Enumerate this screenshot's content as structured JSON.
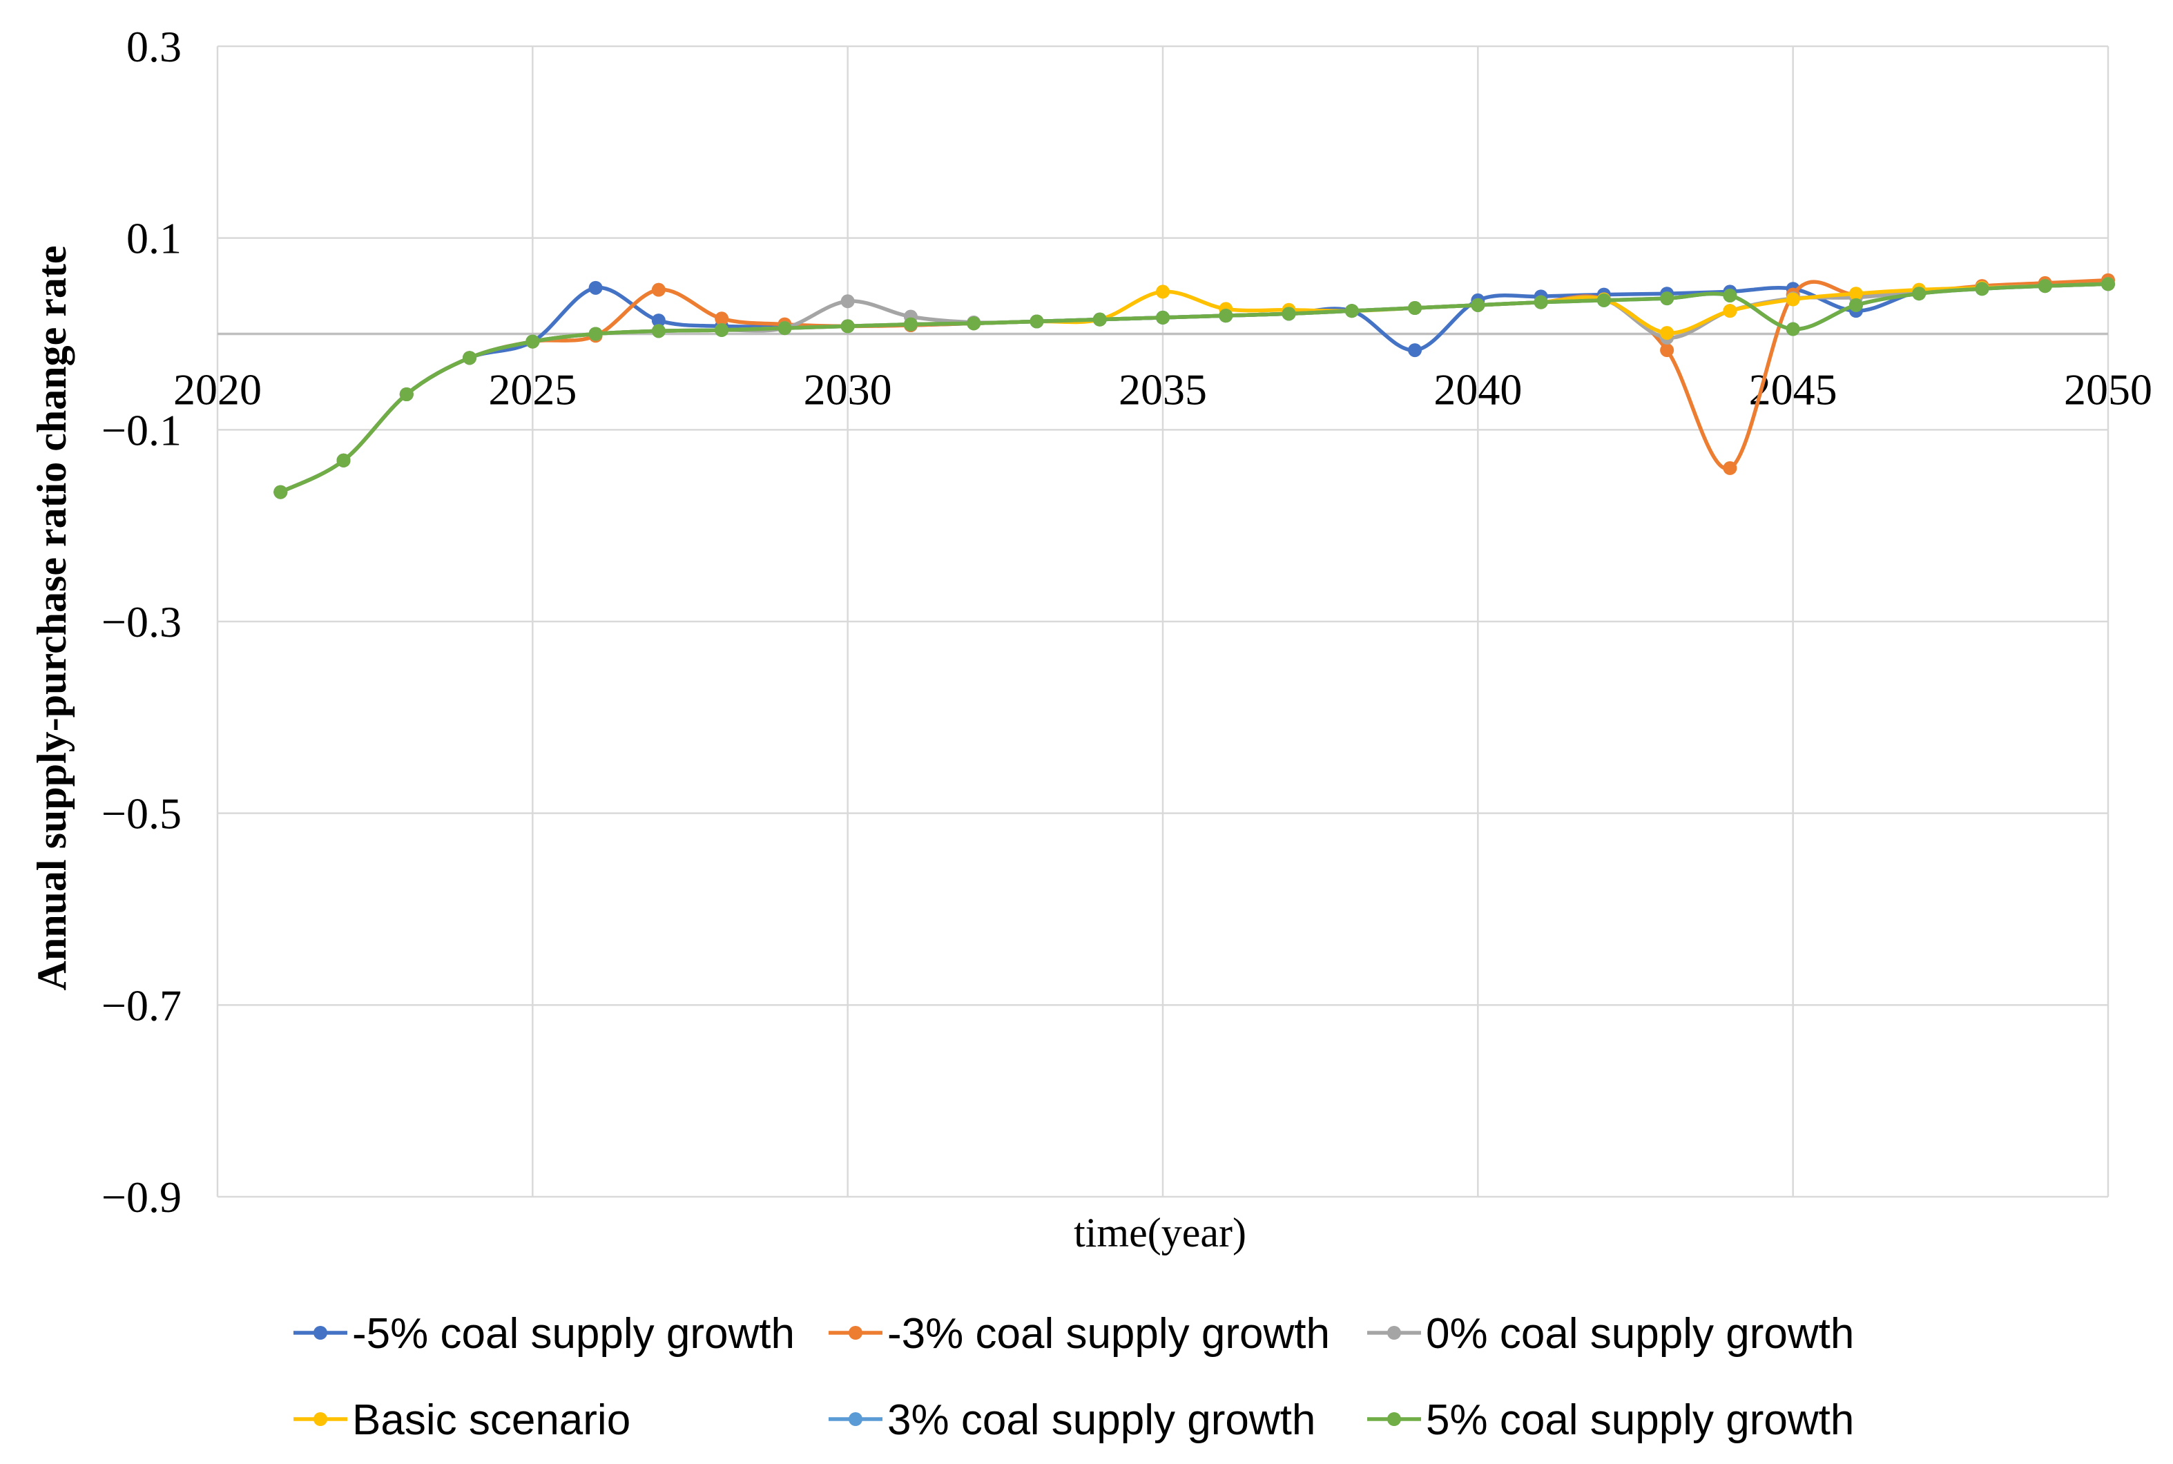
{
  "chart_data": {
    "type": "line",
    "title": "",
    "xlabel": "time(year)",
    "ylabel": "Annual supply-purchase ratio change rate",
    "xlim": [
      2020,
      2050
    ],
    "ylim": [
      -0.9,
      0.3
    ],
    "x_ticks": [
      2020,
      2025,
      2030,
      2035,
      2040,
      2045,
      2050
    ],
    "y_ticks": [
      0.3,
      0.1,
      -0.1,
      -0.3,
      -0.5,
      -0.7,
      -0.9
    ],
    "y_tick_labels": [
      "0.3",
      "0.1",
      "−0.1",
      "−0.3",
      "−0.5",
      "−0.7",
      "−0.9"
    ],
    "grid": true,
    "legend_position": "bottom",
    "x": [
      2021,
      2022,
      2023,
      2024,
      2025,
      2026,
      2027,
      2028,
      2029,
      2030,
      2031,
      2032,
      2033,
      2034,
      2035,
      2036,
      2037,
      2038,
      2039,
      2040,
      2041,
      2042,
      2043,
      2044,
      2045,
      2046,
      2047,
      2048,
      2049,
      2050
    ],
    "series": [
      {
        "name": "-5% coal supply growth",
        "color": "#4472C4",
        "values": [
          -0.165,
          -0.132,
          -0.063,
          -0.025,
          -0.008,
          0.048,
          0.014,
          0.008,
          0.008,
          0.008,
          0.009,
          0.011,
          0.013,
          0.015,
          0.017,
          0.019,
          0.021,
          0.024,
          -0.017,
          0.035,
          0.039,
          0.041,
          0.042,
          0.044,
          0.047,
          0.024,
          0.044,
          0.048,
          0.05,
          0.052
        ]
      },
      {
        "name": "-3% coal supply growth",
        "color": "#ED7D31",
        "values": [
          -0.165,
          -0.132,
          -0.063,
          -0.025,
          -0.008,
          -0.002,
          0.046,
          0.016,
          0.01,
          0.008,
          0.009,
          0.011,
          0.013,
          0.015,
          0.017,
          0.019,
          0.021,
          0.024,
          0.027,
          0.03,
          0.033,
          0.036,
          -0.017,
          -0.14,
          0.041,
          0.041,
          0.044,
          0.05,
          0.053,
          0.056
        ]
      },
      {
        "name": "0% coal supply growth",
        "color": "#A5A5A5",
        "values": [
          -0.165,
          -0.132,
          -0.063,
          -0.025,
          -0.008,
          0.0,
          0.003,
          0.004,
          0.006,
          0.034,
          0.018,
          0.012,
          0.013,
          0.015,
          0.017,
          0.019,
          0.021,
          0.024,
          0.027,
          0.03,
          0.033,
          0.036,
          -0.004,
          0.024,
          0.037,
          0.038,
          0.044,
          0.048,
          0.05,
          0.052
        ]
      },
      {
        "name": "Basic scenario",
        "color": "#FFC000",
        "values": [
          -0.165,
          -0.132,
          -0.063,
          -0.025,
          -0.008,
          0.0,
          0.003,
          0.004,
          0.006,
          0.008,
          0.01,
          0.011,
          0.013,
          0.015,
          0.044,
          0.026,
          0.025,
          0.024,
          0.027,
          0.03,
          0.033,
          0.036,
          0.001,
          0.024,
          0.036,
          0.042,
          0.046,
          0.048,
          0.05,
          0.052
        ]
      },
      {
        "name": "3% coal supply growth",
        "color": "#5B9BD5",
        "values": [
          -0.165,
          -0.132,
          -0.063,
          -0.025,
          -0.008,
          0.0,
          0.003,
          0.004,
          0.006,
          0.008,
          0.01,
          0.011,
          0.013,
          0.015,
          0.017,
          0.019,
          0.021,
          0.024,
          0.027,
          0.03,
          0.033,
          0.035,
          0.037,
          0.04,
          0.005,
          0.03,
          0.042,
          0.047,
          0.05,
          0.052
        ]
      },
      {
        "name": "5% coal supply growth",
        "color": "#70AD47",
        "values": [
          -0.165,
          -0.132,
          -0.063,
          -0.025,
          -0.008,
          0.0,
          0.003,
          0.004,
          0.006,
          0.008,
          0.01,
          0.011,
          0.013,
          0.015,
          0.017,
          0.019,
          0.021,
          0.024,
          0.027,
          0.03,
          0.033,
          0.035,
          0.037,
          0.04,
          0.005,
          0.03,
          0.042,
          0.047,
          0.05,
          0.052
        ]
      }
    ]
  }
}
